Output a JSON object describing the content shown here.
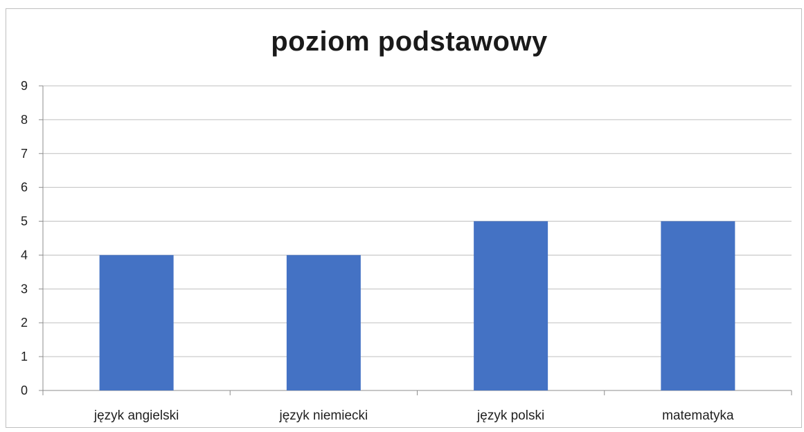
{
  "chart_data": {
    "type": "bar",
    "title": "poziom podstawowy",
    "categories": [
      "język angielski",
      "język niemiecki",
      "język polski",
      "matematyka"
    ],
    "values": [
      4,
      4,
      5,
      5
    ],
    "ylim": [
      0,
      9
    ],
    "yticks": [
      "0",
      "1",
      "2",
      "3",
      "4",
      "5",
      "6",
      "7",
      "8",
      "9"
    ],
    "xlabel": "",
    "ylabel": "",
    "grid": true,
    "legend": "none",
    "bar_color": "#4472c4",
    "grid_color": "#bfbfbf"
  }
}
